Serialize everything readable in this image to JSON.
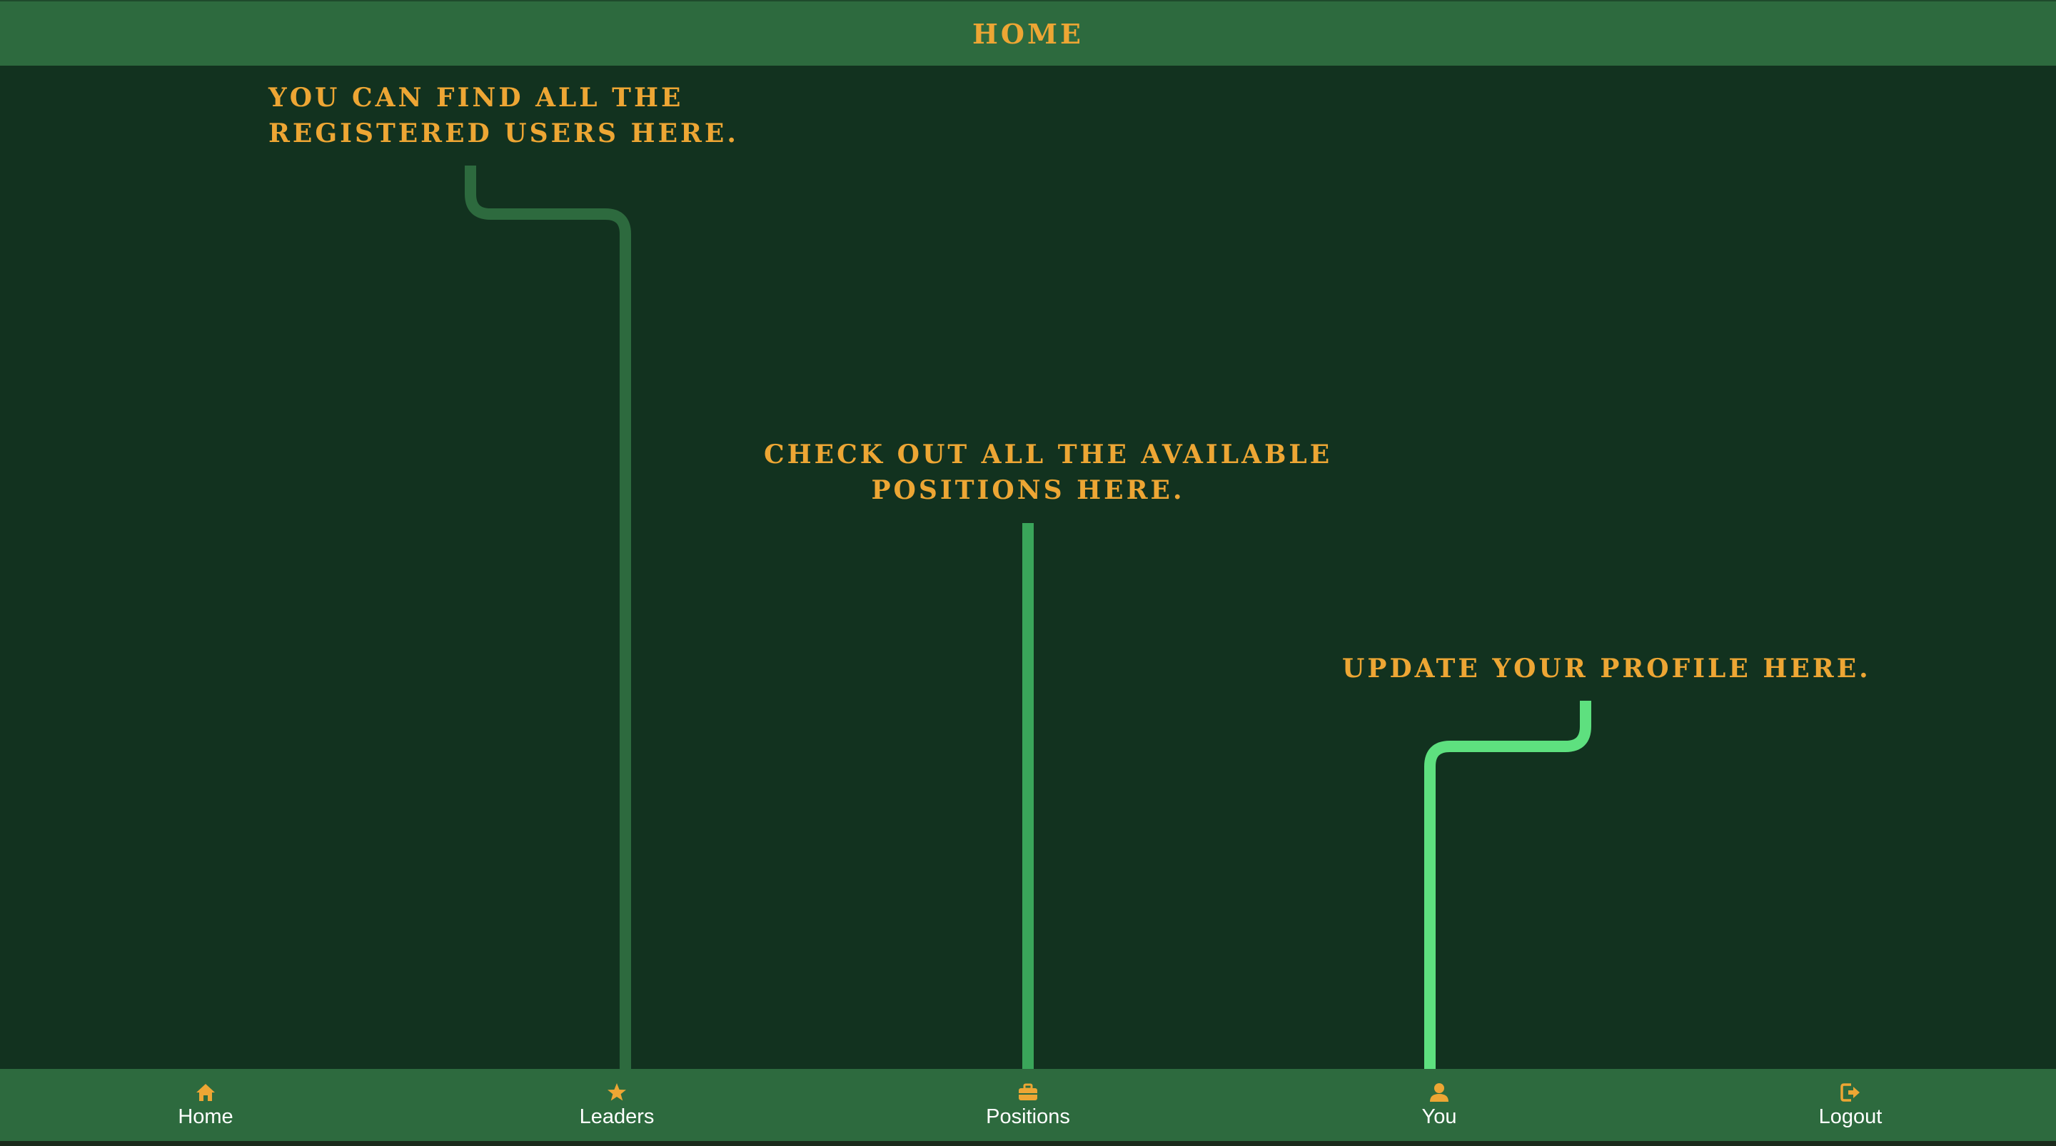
{
  "header": {
    "title": "HOME"
  },
  "hints": {
    "leaders": {
      "line1": "YOU CAN FIND ALL THE",
      "line2": "REGISTERED USERS HERE."
    },
    "positions": {
      "line1": "CHECK OUT ALL THE AVAILABLE",
      "line2": "POSITIONS HERE."
    },
    "profile": {
      "line1": "UPDATE YOUR PROFILE HERE."
    }
  },
  "nav": {
    "items": [
      {
        "label": "Home",
        "icon": "home-icon"
      },
      {
        "label": "Leaders",
        "icon": "star-icon"
      },
      {
        "label": "Positions",
        "icon": "briefcase-icon"
      },
      {
        "label": "You",
        "icon": "user-icon"
      },
      {
        "label": "Logout",
        "icon": "logout-icon"
      }
    ]
  },
  "colors": {
    "bar": "#2d6a3e",
    "background": "#12321f",
    "accent": "#eda634",
    "connector_leaders": "#2d6a3e",
    "connector_positions": "#3aa55a",
    "connector_profile": "#5ee07f"
  }
}
